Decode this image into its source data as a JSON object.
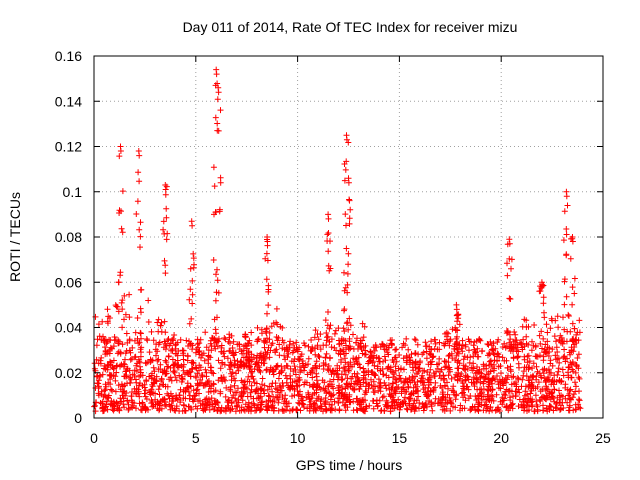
{
  "chart_data": {
    "type": "scatter",
    "title": "Day 011 of 2014, Rate Of TEC Index for receiver mizu",
    "xlabel": "GPS time / hours",
    "ylabel": "ROTI / TECUs",
    "xlim": [
      0,
      25
    ],
    "ylim": [
      0,
      0.16
    ],
    "xticks": [
      0,
      5,
      10,
      15,
      20,
      25
    ],
    "xtick_labels": [
      "0",
      "5",
      "10",
      "15",
      "20",
      "25"
    ],
    "yticks": [
      0,
      0.02,
      0.04,
      0.06,
      0.08,
      0.1,
      0.12,
      0.14,
      0.16
    ],
    "ytick_labels": [
      "0",
      "0.02",
      "0.04",
      "0.06",
      "0.08",
      "0.1",
      "0.12",
      "0.14",
      "0.16"
    ],
    "grid": true,
    "marker": "+",
    "series": [
      {
        "name": "ROTI",
        "color": "#ff0000",
        "data_range_x": [
          0,
          23.9
        ],
        "background_band": [
          0.003,
          0.035
        ],
        "peaks": [
          {
            "x": 1.3,
            "y": 0.12
          },
          {
            "x": 2.2,
            "y": 0.118
          },
          {
            "x": 3.5,
            "y": 0.103
          },
          {
            "x": 6.0,
            "y": 0.154
          },
          {
            "x": 6.1,
            "y": 0.146
          },
          {
            "x": 4.8,
            "y": 0.087
          },
          {
            "x": 8.5,
            "y": 0.08
          },
          {
            "x": 11.5,
            "y": 0.09
          },
          {
            "x": 12.4,
            "y": 0.125
          },
          {
            "x": 12.5,
            "y": 0.106
          },
          {
            "x": 20.4,
            "y": 0.079
          },
          {
            "x": 23.2,
            "y": 0.1
          },
          {
            "x": 23.5,
            "y": 0.08
          },
          {
            "x": 22.0,
            "y": 0.06
          },
          {
            "x": 17.8,
            "y": 0.05
          }
        ]
      }
    ]
  }
}
